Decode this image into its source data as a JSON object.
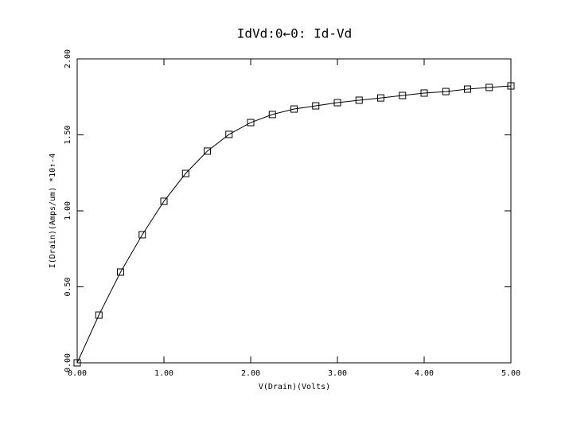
{
  "chart_data": {
    "type": "line",
    "title": "IdVd:0←0: Id-Vd",
    "x_label": "V(Drain)(Volts)",
    "y_label": "I(Drain)(Amps/um) *10↑-4",
    "x": [
      0,
      0.25,
      0.5,
      0.75,
      1.0,
      1.25,
      1.5,
      1.75,
      2.0,
      2.25,
      2.5,
      2.75,
      3.0,
      3.25,
      3.5,
      3.75,
      4.0,
      4.25,
      4.5,
      4.75,
      5.0
    ],
    "series": [
      {
        "name": "Id-Vd",
        "color": "#000000",
        "marker": "square",
        "values": [
          0,
          0.314,
          0.597,
          0.843,
          1.063,
          1.246,
          1.393,
          1.503,
          1.581,
          1.634,
          1.67,
          1.691,
          1.712,
          1.728,
          1.743,
          1.759,
          1.775,
          1.785,
          1.801,
          1.812,
          1.822
        ]
      }
    ],
    "xlim": [
      0,
      5
    ],
    "ylim": [
      0,
      2
    ],
    "xticks": [
      {
        "value": 0,
        "label": "0.00"
      },
      {
        "value": 1,
        "label": "1.00"
      },
      {
        "value": 2,
        "label": "2.00"
      },
      {
        "value": 3,
        "label": "3.00"
      },
      {
        "value": 4,
        "label": "4.00"
      },
      {
        "value": 5,
        "label": "5.00"
      }
    ],
    "yticks": [
      {
        "value": 0,
        "label": "0.00"
      },
      {
        "value": 0.5,
        "label": "0.50"
      },
      {
        "value": 1,
        "label": "1.00"
      },
      {
        "value": 1.5,
        "label": "1.50"
      },
      {
        "value": 2,
        "label": "2.00"
      }
    ]
  }
}
